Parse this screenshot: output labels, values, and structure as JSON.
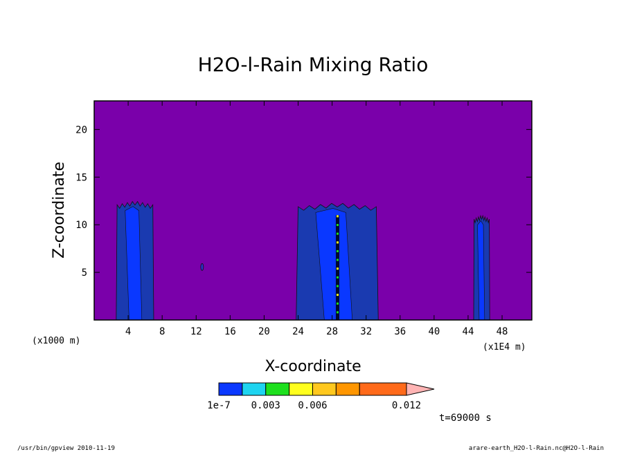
{
  "chart_data": {
    "type": "heatmap",
    "title": "H2O-l-Rain Mixing Ratio",
    "xlabel": "X-coordinate",
    "ylabel": "Z-coordinate",
    "x_unit_left": "(x1000 m)",
    "x_unit_right": "(x1E4 m)",
    "xlim": [
      0,
      51.5
    ],
    "ylim": [
      0,
      23
    ],
    "x_ticks": [
      "4",
      "8",
      "12",
      "16",
      "20",
      "24",
      "28",
      "32",
      "36",
      "40",
      "44",
      "48"
    ],
    "y_ticks": [
      "5",
      "10",
      "15",
      "20"
    ],
    "time_label": "t=69000 s",
    "colorbar": {
      "levels": [
        1e-07,
        0.0015,
        0.003,
        0.0045,
        0.006,
        0.0075,
        0.009,
        0.012
      ],
      "labels": [
        "1e-7",
        "0.003",
        "0.006",
        "0.012"
      ],
      "colors": [
        "#0a38ff",
        "#1ed4f0",
        "#1ee01e",
        "#ffff1e",
        "#ffc81e",
        "#ff9600",
        "#ff6a1a",
        "#ff1e1e",
        "#ff7878"
      ],
      "extend_color": "#ffb4b4",
      "below_color": "#7a00aa"
    },
    "features": [
      {
        "x_center": 4.8,
        "x_width": 4.2,
        "z_top": 12.5
      },
      {
        "x_center": 28.6,
        "x_width": 9.2,
        "z_top": 12.3
      },
      {
        "x_center": 45.6,
        "x_width": 1.8,
        "z_top": 11.0
      },
      {
        "x_center": 12.7,
        "x_width": 0.2,
        "z_top": 6.0
      }
    ]
  },
  "footer": {
    "left": "/usr/bin/gpview   2010-11-19",
    "right": "arare-earth_H2O-l-Rain.nc@H2O-l-Rain"
  }
}
